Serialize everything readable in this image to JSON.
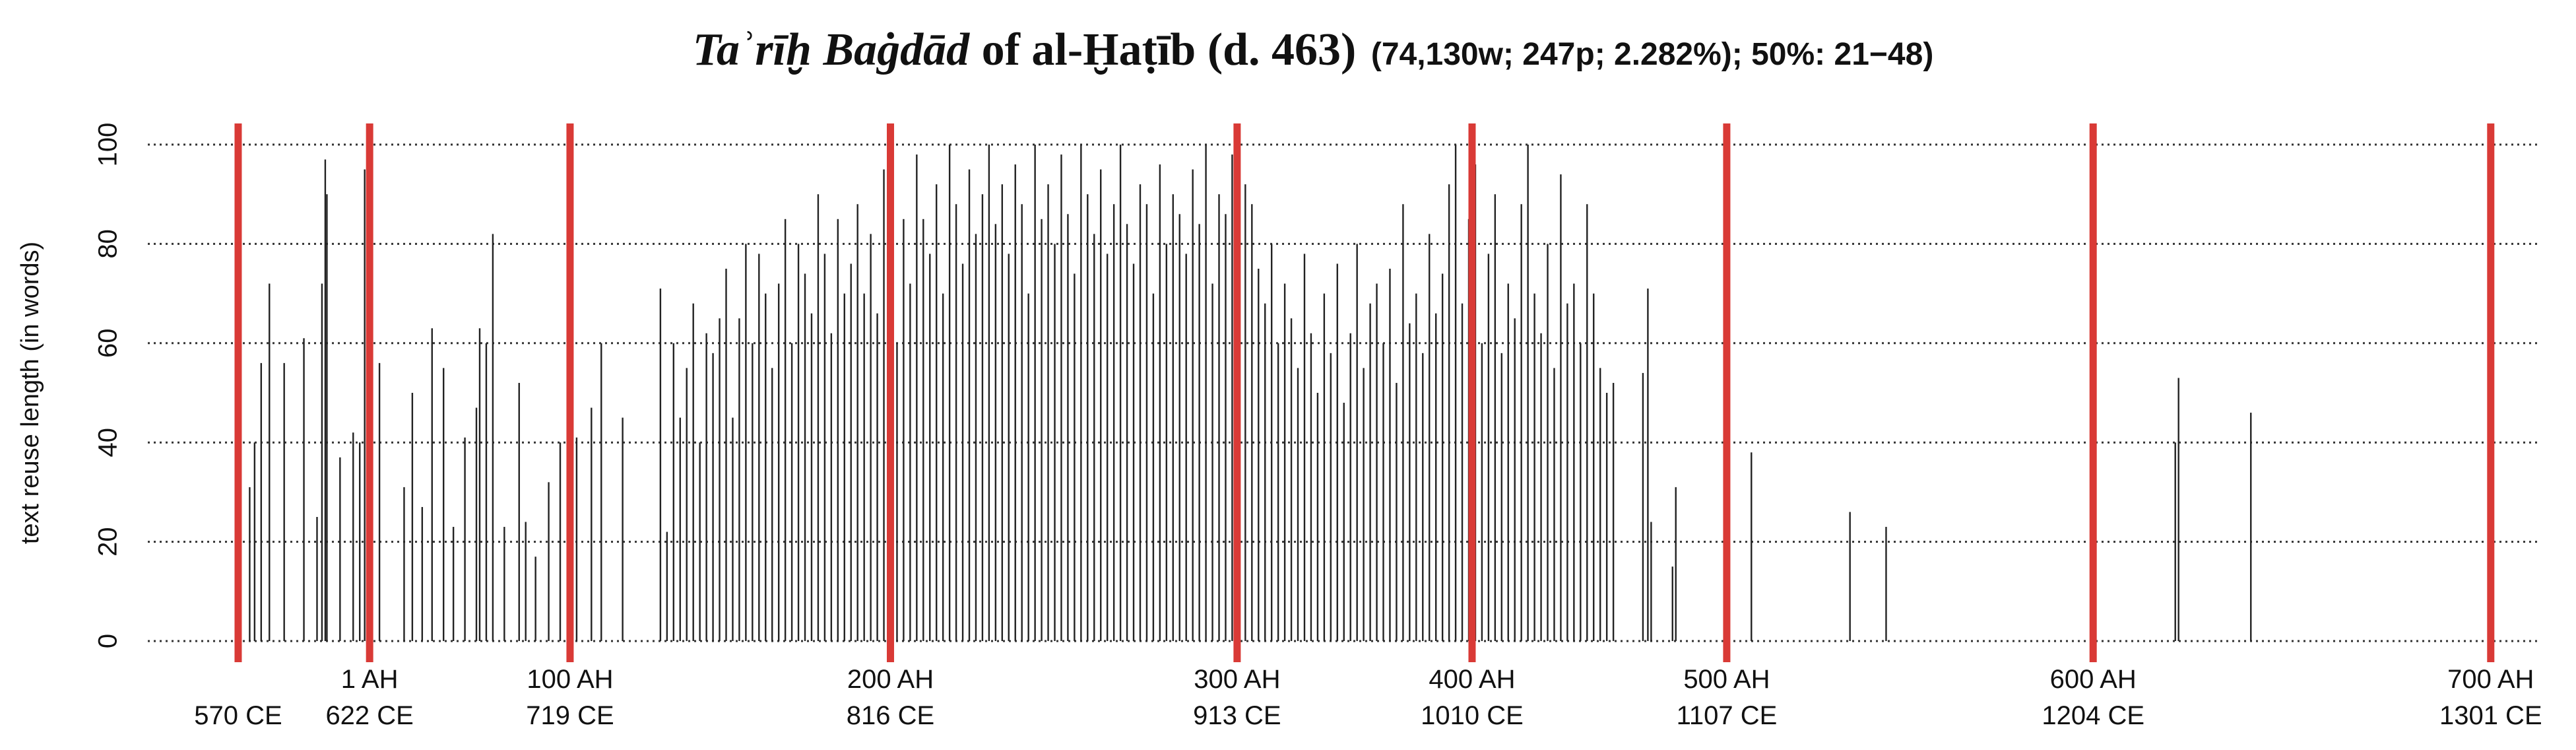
{
  "chart_data": {
    "type": "bar",
    "title_parts": [
      "Taʾrīḫ Baġdād",
      "of al-Ḫaṭīb (d. 463)",
      "(74,130w; 247p; 2.282%); 50%: 21−48)"
    ],
    "y_label": "text reuse length (in words)",
    "ylim": [
      0,
      100
    ],
    "yticks": [
      0,
      20,
      40,
      60,
      80,
      100
    ],
    "xlim": [
      90,
      1545
    ],
    "xticks": [
      {
        "value": 225,
        "label": "1 AH"
      },
      {
        "value": 347,
        "label": "100 AH"
      },
      {
        "value": 542,
        "label": "200 AH"
      },
      {
        "value": 753,
        "label": "300 AH"
      },
      {
        "value": 896,
        "label": "400 AH"
      },
      {
        "value": 1051,
        "label": "500 AH"
      },
      {
        "value": 1274,
        "label": "600 AH"
      },
      {
        "value": 1516,
        "label": "700 AH"
      }
    ],
    "xticks2": [
      {
        "value": 145,
        "label": "570 CE"
      },
      {
        "value": 225,
        "label": "622 CE"
      },
      {
        "value": 347,
        "label": "719 CE"
      },
      {
        "value": 542,
        "label": "816 CE"
      },
      {
        "value": 753,
        "label": "913 CE"
      },
      {
        "value": 896,
        "label": "1010 CE"
      },
      {
        "value": 1051,
        "label": "1107 CE"
      },
      {
        "value": 1274,
        "label": "1204 CE"
      },
      {
        "value": 1516,
        "label": "1301 CE"
      }
    ],
    "grid": true,
    "color": "#222222",
    "marker_color": "#d93a36",
    "x": [
      152,
      155,
      159,
      164,
      173,
      185,
      193,
      196,
      198,
      199,
      207,
      215,
      219,
      222,
      231,
      246,
      251,
      257,
      263,
      270,
      276,
      283,
      290,
      292,
      296,
      300,
      307,
      316,
      320,
      326,
      334,
      341,
      351,
      360,
      366,
      379,
      402,
      406,
      410,
      414,
      418,
      422,
      426,
      430,
      434,
      438,
      442,
      446,
      450,
      454,
      458,
      462,
      466,
      470,
      474,
      478,
      482,
      486,
      490,
      494,
      498,
      502,
      506,
      510,
      514,
      518,
      522,
      526,
      530,
      534,
      538,
      542,
      546,
      550,
      554,
      558,
      562,
      566,
      570,
      574,
      578,
      582,
      586,
      590,
      594,
      598,
      602,
      606,
      610,
      614,
      618,
      622,
      626,
      630,
      634,
      638,
      642,
      646,
      650,
      654,
      658,
      662,
      666,
      670,
      674,
      678,
      682,
      686,
      690,
      694,
      698,
      702,
      706,
      710,
      714,
      718,
      722,
      726,
      730,
      734,
      738,
      742,
      746,
      750,
      754,
      758,
      762,
      766,
      770,
      774,
      778,
      782,
      786,
      790,
      794,
      798,
      802,
      806,
      810,
      814,
      818,
      822,
      826,
      830,
      834,
      838,
      842,
      846,
      850,
      854,
      858,
      862,
      866,
      870,
      874,
      878,
      882,
      886,
      890,
      894,
      898,
      902,
      906,
      910,
      914,
      918,
      922,
      926,
      930,
      934,
      938,
      942,
      946,
      950,
      954,
      958,
      962,
      966,
      970,
      974,
      978,
      982,
      1000,
      1003,
      1005,
      1018,
      1020,
      1066,
      1126,
      1148,
      1324,
      1326,
      1370
    ],
    "values": [
      31,
      40,
      56,
      72,
      56,
      61,
      25,
      72,
      97,
      90,
      37,
      42,
      40,
      95,
      56,
      31,
      50,
      27,
      63,
      55,
      23,
      41,
      47,
      63,
      60,
      82,
      23,
      52,
      24,
      17,
      32,
      40,
      41,
      47,
      60,
      45,
      71,
      22,
      60,
      45,
      55,
      68,
      40,
      62,
      58,
      65,
      75,
      45,
      65,
      80,
      60,
      78,
      70,
      55,
      72,
      85,
      60,
      80,
      74,
      66,
      90,
      78,
      62,
      85,
      70,
      76,
      88,
      70,
      82,
      66,
      95,
      80,
      60,
      85,
      72,
      98,
      85,
      78,
      92,
      70,
      100,
      88,
      76,
      95,
      82,
      90,
      100,
      84,
      92,
      78,
      96,
      88,
      70,
      100,
      85,
      92,
      80,
      98,
      86,
      74,
      100,
      90,
      82,
      95,
      78,
      88,
      100,
      84,
      76,
      92,
      88,
      70,
      96,
      80,
      90,
      86,
      78,
      95,
      84,
      100,
      72,
      90,
      86,
      98,
      80,
      92,
      88,
      75,
      68,
      80,
      60,
      72,
      65,
      55,
      78,
      62,
      50,
      70,
      58,
      76,
      48,
      62,
      80,
      55,
      68,
      72,
      60,
      75,
      52,
      88,
      64,
      70,
      58,
      82,
      66,
      74,
      92,
      100,
      68,
      85,
      96,
      60,
      78,
      90,
      58,
      72,
      65,
      88,
      100,
      70,
      62,
      80,
      55,
      94,
      68,
      72,
      60,
      88,
      70,
      55,
      50,
      52,
      54,
      71,
      24,
      15,
      31,
      38,
      26,
      23,
      40,
      53,
      46
    ]
  }
}
